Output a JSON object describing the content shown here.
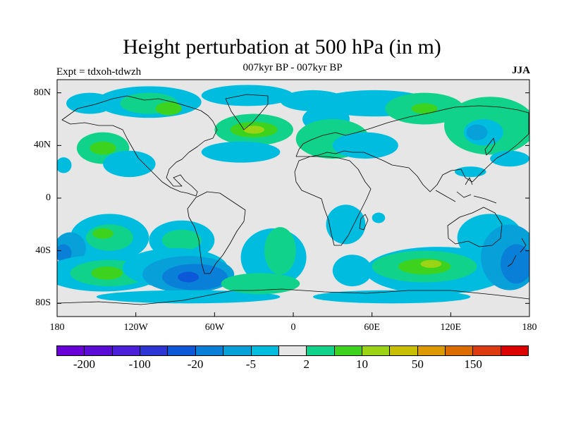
{
  "title": "Height perturbation at 500 hPa (in m)",
  "subtitle": "007kyr BP - 007kyr BP",
  "left_label": "Expt = tdxoh-tdwzh",
  "right_label": "JJA",
  "map": {
    "projection": "cylindrical-equidistant",
    "lon_range": [
      -180,
      180
    ],
    "lat_range": [
      -90,
      90
    ],
    "background_color": "#e6e6e6",
    "coastline_color": "#000000",
    "lat_ticks": [
      {
        "lat": 80,
        "label": "80N"
      },
      {
        "lat": 40,
        "label": "40N"
      },
      {
        "lat": 0,
        "label": "0"
      },
      {
        "lat": -40,
        "label": "40S"
      },
      {
        "lat": -80,
        "label": "80S"
      }
    ],
    "lon_ticks": [
      {
        "lon": -180,
        "label": "180"
      },
      {
        "lon": -120,
        "label": "120W"
      },
      {
        "lon": -60,
        "label": "60W"
      },
      {
        "lon": 0,
        "label": "0"
      },
      {
        "lon": 60,
        "label": "60E"
      },
      {
        "lon": 120,
        "label": "120E"
      },
      {
        "lon": 180,
        "label": "180"
      }
    ]
  },
  "colorbar": {
    "colors": [
      "#6a00d8",
      "#5a0bd6",
      "#4b1fd9",
      "#2d36d4",
      "#0d58d8",
      "#0a7fd8",
      "#08a0d8",
      "#00bde0",
      "#e6e6e6",
      "#10d28a",
      "#3cd21e",
      "#9ad414",
      "#c8bf00",
      "#dc9a00",
      "#dd6c00",
      "#dd3a10",
      "#dd0000"
    ],
    "labels": [
      {
        "text": "-200",
        "index": 1
      },
      {
        "text": "-100",
        "index": 3
      },
      {
        "text": "-20",
        "index": 5
      },
      {
        "text": "-5",
        "index": 7
      },
      {
        "text": "2",
        "index": 9
      },
      {
        "text": "10",
        "index": 11
      },
      {
        "text": "50",
        "index": 13
      },
      {
        "text": "150",
        "index": 15
      }
    ]
  },
  "field_blobs": [
    {
      "lon": -155,
      "lat": 72,
      "rx": 18,
      "ry": 8,
      "level": 7
    },
    {
      "lon": -110,
      "lat": 73,
      "rx": 40,
      "ry": 12,
      "level": 7
    },
    {
      "lon": -110,
      "lat": 72,
      "rx": 22,
      "ry": 8,
      "level": 9
    },
    {
      "lon": -95,
      "lat": 68,
      "rx": 10,
      "ry": 5,
      "level": 10
    },
    {
      "lon": -35,
      "lat": 78,
      "rx": 35,
      "ry": 8,
      "level": 7
    },
    {
      "lon": 15,
      "lat": 74,
      "rx": 25,
      "ry": 8,
      "level": 7
    },
    {
      "lon": 25,
      "lat": 60,
      "rx": 18,
      "ry": 10,
      "level": 7
    },
    {
      "lon": -30,
      "lat": 52,
      "rx": 30,
      "ry": 12,
      "level": 9
    },
    {
      "lon": -30,
      "lat": 52,
      "rx": 18,
      "ry": 6,
      "level": 10
    },
    {
      "lon": -30,
      "lat": 52,
      "rx": 8,
      "ry": 3,
      "level": 11
    },
    {
      "lon": -40,
      "lat": 35,
      "rx": 30,
      "ry": 8,
      "level": 7
    },
    {
      "lon": -145,
      "lat": 38,
      "rx": 20,
      "ry": 12,
      "level": 9
    },
    {
      "lon": -145,
      "lat": 38,
      "rx": 10,
      "ry": 5,
      "level": 10
    },
    {
      "lon": -175,
      "lat": 25,
      "rx": 6,
      "ry": 6,
      "level": 7
    },
    {
      "lon": -125,
      "lat": 26,
      "rx": 20,
      "ry": 10,
      "level": 7
    },
    {
      "lon": 30,
      "lat": 45,
      "rx": 28,
      "ry": 15,
      "level": 9
    },
    {
      "lon": 55,
      "lat": 40,
      "rx": 25,
      "ry": 10,
      "level": 7
    },
    {
      "lon": 62,
      "lat": 72,
      "rx": 45,
      "ry": 10,
      "level": 7
    },
    {
      "lon": 100,
      "lat": 68,
      "rx": 30,
      "ry": 12,
      "level": 9
    },
    {
      "lon": 100,
      "lat": 68,
      "rx": 10,
      "ry": 4,
      "level": 10
    },
    {
      "lon": 150,
      "lat": 55,
      "rx": 35,
      "ry": 22,
      "level": 9
    },
    {
      "lon": 145,
      "lat": 50,
      "rx": 15,
      "ry": 10,
      "level": 7
    },
    {
      "lon": 140,
      "lat": 50,
      "rx": 8,
      "ry": 6,
      "level": 6
    },
    {
      "lon": 170,
      "lat": 55,
      "rx": 10,
      "ry": 15,
      "level": 9
    },
    {
      "lon": 165,
      "lat": 30,
      "rx": 15,
      "ry": 6,
      "level": 7
    },
    {
      "lon": 135,
      "lat": 20,
      "rx": 12,
      "ry": 4,
      "level": 7
    },
    {
      "lon": -140,
      "lat": -30,
      "rx": 30,
      "ry": 18,
      "level": 7
    },
    {
      "lon": -140,
      "lat": -30,
      "rx": 18,
      "ry": 10,
      "level": 9
    },
    {
      "lon": -145,
      "lat": -27,
      "rx": 8,
      "ry": 4,
      "level": 10
    },
    {
      "lon": -170,
      "lat": -38,
      "rx": 12,
      "ry": 12,
      "level": 6
    },
    {
      "lon": -175,
      "lat": -42,
      "rx": 6,
      "ry": 7,
      "level": 5
    },
    {
      "lon": -145,
      "lat": -57,
      "rx": 45,
      "ry": 14,
      "level": 7
    },
    {
      "lon": -140,
      "lat": -57,
      "rx": 30,
      "ry": 10,
      "level": 9
    },
    {
      "lon": -142,
      "lat": -57,
      "rx": 12,
      "ry": 5,
      "level": 10
    },
    {
      "lon": -85,
      "lat": -32,
      "rx": 25,
      "ry": 15,
      "level": 7
    },
    {
      "lon": -85,
      "lat": -32,
      "rx": 15,
      "ry": 8,
      "level": 9
    },
    {
      "lon": -90,
      "lat": -53,
      "rx": 40,
      "ry": 15,
      "level": 7
    },
    {
      "lon": -80,
      "lat": -58,
      "rx": 35,
      "ry": 14,
      "level": 6
    },
    {
      "lon": -75,
      "lat": -60,
      "rx": 25,
      "ry": 10,
      "level": 5
    },
    {
      "lon": -80,
      "lat": -60,
      "rx": 8,
      "ry": 4,
      "level": 4
    },
    {
      "lon": -80,
      "lat": -75,
      "rx": 70,
      "ry": 5,
      "level": 7
    },
    {
      "lon": -15,
      "lat": -45,
      "rx": 25,
      "ry": 22,
      "level": 7
    },
    {
      "lon": -10,
      "lat": -40,
      "rx": 12,
      "ry": 18,
      "level": 9
    },
    {
      "lon": -25,
      "lat": -65,
      "rx": 30,
      "ry": 8,
      "level": 9
    },
    {
      "lon": 40,
      "lat": -20,
      "rx": 15,
      "ry": 15,
      "level": 7
    },
    {
      "lon": 45,
      "lat": -55,
      "rx": 15,
      "ry": 12,
      "level": 7
    },
    {
      "lon": 65,
      "lat": -15,
      "rx": 5,
      "ry": 4,
      "level": 7
    },
    {
      "lon": 110,
      "lat": -55,
      "rx": 55,
      "ry": 18,
      "level": 7
    },
    {
      "lon": 100,
      "lat": -52,
      "rx": 40,
      "ry": 12,
      "level": 9
    },
    {
      "lon": 100,
      "lat": -52,
      "rx": 20,
      "ry": 6,
      "level": 10
    },
    {
      "lon": 105,
      "lat": -50,
      "rx": 8,
      "ry": 3,
      "level": 11
    },
    {
      "lon": 75,
      "lat": -75,
      "rx": 60,
      "ry": 5,
      "level": 7
    },
    {
      "lon": 150,
      "lat": -30,
      "rx": 25,
      "ry": 18,
      "level": 7
    },
    {
      "lon": 165,
      "lat": -45,
      "rx": 22,
      "ry": 25,
      "level": 6
    },
    {
      "lon": 170,
      "lat": -50,
      "rx": 12,
      "ry": 15,
      "level": 5
    }
  ]
}
